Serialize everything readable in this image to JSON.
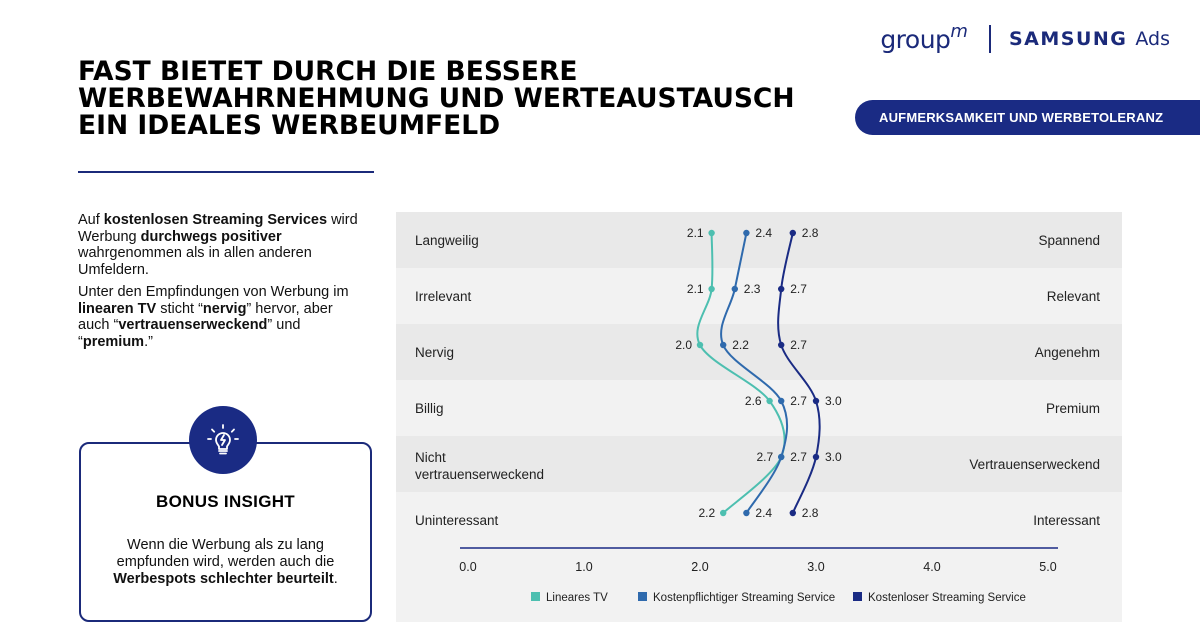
{
  "header": {
    "logo_groupm": "group",
    "logo_groupm_m": "m",
    "logo_samsung": "SAMSUNG",
    "logo_ads": "Ads"
  },
  "headline": {
    "line1": "FAST BIETET DURCH DIE BESSERE",
    "line2": "WERBEWAHRNEHMUNG UND WERTEAUSTAUSCH",
    "line3": "EIN IDEALES WERBEUMFELD"
  },
  "pill_label": "AUFMERKSAMKEIT UND WERBETOLERANZ",
  "intro": {
    "p1_a": "Auf ",
    "p1_b": "kostenlosen Streaming Services",
    "p1_c": " wird Werbung ",
    "p1_d": "durchwegs positiver",
    "p1_e": " wahrgenommen als in allen anderen Umfeldern.",
    "p2_a": "Unter den Empfindungen von Werbung im ",
    "p2_b": "linearen TV",
    "p2_c": " sticht “",
    "p2_d": "nervig",
    "p2_e": "” hervor, aber auch “",
    "p2_f": "vertrauenserweckend",
    "p2_g": "” und “",
    "p2_h": "premium",
    "p2_i": ".”"
  },
  "bonus": {
    "icon": "lightbulb-icon",
    "title": "BONUS INSIGHT",
    "text_a": "Wenn die Werbung als zu lang empfunden wird, werden auch die ",
    "text_b": "Werbespots schlechter beurteilt",
    "text_c": "."
  },
  "colors": {
    "brand": "#1a2b84",
    "panel": "#f2f2f2",
    "band": "#e9e9e9",
    "lineares": "#4dbfb0",
    "kostenpflichtig": "#2f6aad",
    "kostenlos": "#1a2b84"
  },
  "chart_data": {
    "type": "line",
    "orientation": "horizontal-semantic-differential",
    "xlim": [
      0,
      5
    ],
    "x_ticks": [
      "0.0",
      "1.0",
      "2.0",
      "3.0",
      "4.0",
      "5.0"
    ],
    "rows": [
      {
        "left": "Langweilig",
        "right": "Spannend"
      },
      {
        "left": "Irrelevant",
        "right": "Relevant"
      },
      {
        "left": "Nervig",
        "right": "Angenehm"
      },
      {
        "left": "Billig",
        "right": "Premium"
      },
      {
        "left": "Nicht vertrauenserweckend",
        "right": "Vertrauenserweckend"
      },
      {
        "left": "Uninteressant",
        "right": "Interessant"
      }
    ],
    "series": [
      {
        "name": "Lineares TV",
        "values": [
          2.1,
          2.1,
          2.0,
          2.6,
          2.7,
          2.2
        ],
        "labels": [
          "2.1",
          "2.1",
          "2.0",
          "2.6",
          "2.7",
          "2.2"
        ]
      },
      {
        "name": "Kostenpflichtiger Streaming Service",
        "values": [
          2.4,
          2.3,
          2.2,
          2.7,
          2.7,
          2.4
        ],
        "labels": [
          "2.4",
          "2.3",
          "2.2",
          "2.7",
          "2.7",
          "2.4"
        ]
      },
      {
        "name": "Kostenloser Streaming Service",
        "values": [
          2.8,
          2.7,
          2.7,
          3.0,
          3.0,
          2.8
        ],
        "labels": [
          "2.8",
          "2.7",
          "2.7",
          "3.0",
          "3.0",
          "2.8"
        ]
      }
    ],
    "legend_position": "bottom"
  }
}
